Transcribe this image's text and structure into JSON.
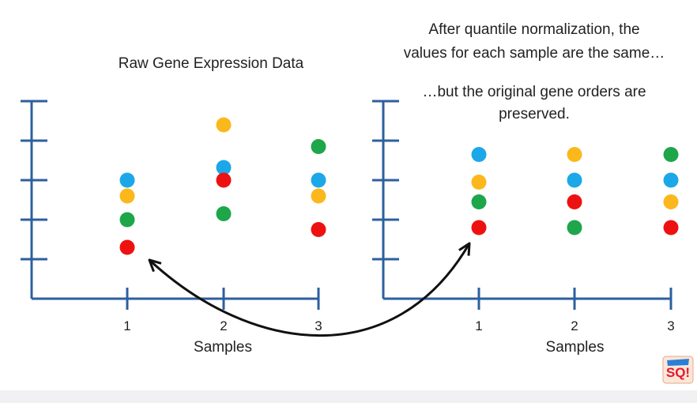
{
  "colors": {
    "axis": "#2e5f9e",
    "arrow": "#111111",
    "text": "#222222",
    "blue": "#1ca8e8",
    "orange": "#fbb81c",
    "green": "#1ea64a",
    "red": "#ee1111"
  },
  "chart_data": [
    {
      "type": "scatter",
      "title": "Raw Gene Expression Data",
      "xlabel": "Samples",
      "ylabel": "",
      "categories": [
        "1",
        "2",
        "3"
      ],
      "ylim": [
        0,
        5
      ],
      "y_ticks": 5,
      "grid": false,
      "series": [
        {
          "color": "blue",
          "values": [
            3.0,
            3.32,
            3.0
          ]
        },
        {
          "color": "orange",
          "values": [
            2.6,
            4.4,
            2.6
          ]
        },
        {
          "color": "green",
          "values": [
            2.0,
            2.15,
            3.85
          ]
        },
        {
          "color": "red",
          "values": [
            1.3,
            3.0,
            1.75
          ]
        }
      ]
    },
    {
      "type": "scatter",
      "title": "After quantile normalization, the values for each sample are the same…",
      "subtitle": "…but the original gene orders are preserved.",
      "xlabel": "Samples",
      "ylabel": "",
      "categories": [
        "1",
        "2",
        "3"
      ],
      "ylim": [
        0,
        5
      ],
      "y_ticks": 5,
      "grid": false,
      "series": [
        {
          "color": "blue",
          "values": [
            3.65,
            3.0,
            3.0
          ]
        },
        {
          "color": "orange",
          "values": [
            2.95,
            3.65,
            2.45
          ]
        },
        {
          "color": "green",
          "values": [
            2.45,
            1.8,
            3.65
          ]
        },
        {
          "color": "red",
          "values": [
            1.8,
            2.45,
            1.8
          ]
        }
      ]
    }
  ],
  "logo": {
    "name": "statquest-logo"
  }
}
